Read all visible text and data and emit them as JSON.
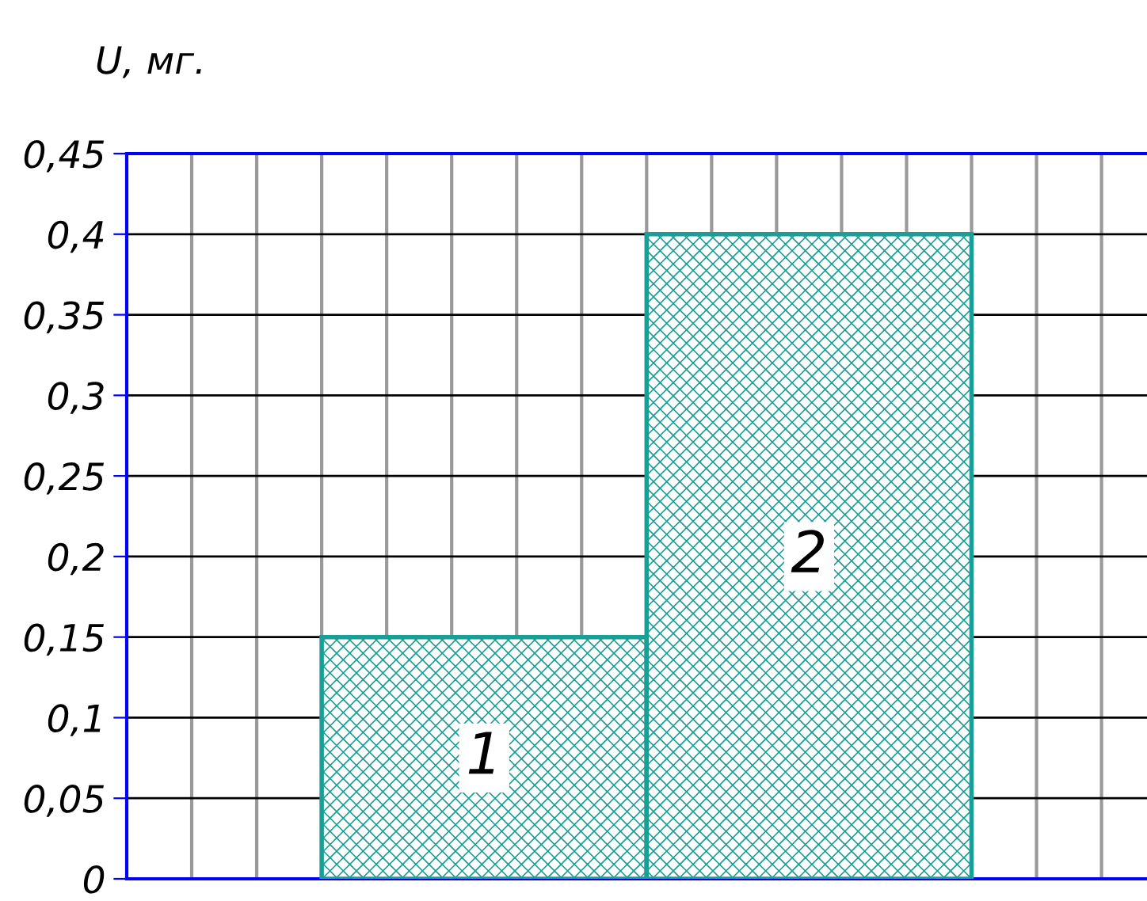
{
  "chart_data": {
    "type": "bar",
    "ylabel": "U, мг.",
    "categories": [
      "1",
      "2"
    ],
    "values": [
      0.15,
      0.4
    ],
    "color": "#1a9e96",
    "ylim": [
      0,
      0.45
    ],
    "yticks": [
      {
        "value": 0,
        "label": "0"
      },
      {
        "value": 0.05,
        "label": "0,05"
      },
      {
        "value": 0.1,
        "label": "0,1"
      },
      {
        "value": 0.15,
        "label": "0,15"
      },
      {
        "value": 0.2,
        "label": "0,2"
      },
      {
        "value": 0.25,
        "label": "0,25"
      },
      {
        "value": 0.3,
        "label": "0,3"
      },
      {
        "value": 0.35,
        "label": "0,35"
      },
      {
        "value": 0.4,
        "label": "0,4"
      },
      {
        "value": 0.45,
        "label": "0,45"
      }
    ],
    "grid": true
  }
}
